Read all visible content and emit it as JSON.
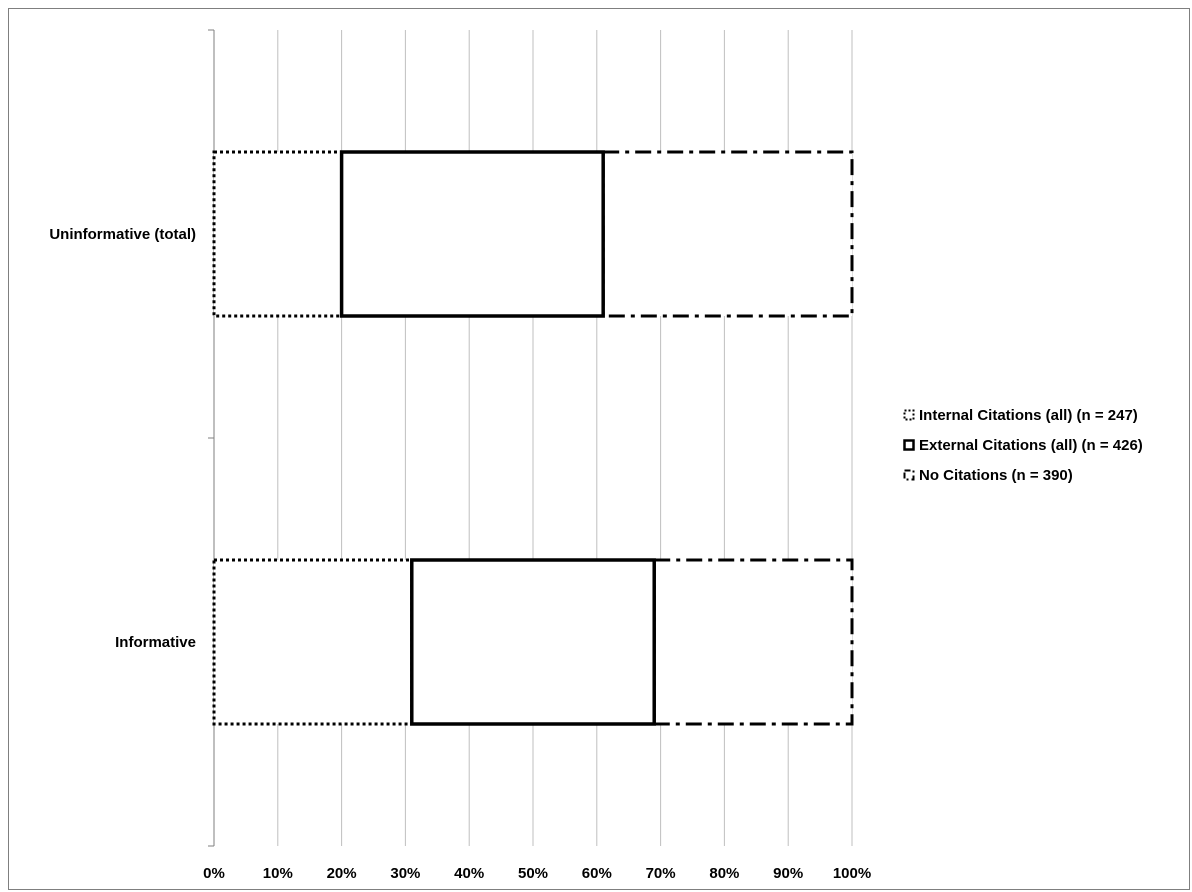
{
  "chart_data": {
    "type": "bar",
    "stacked": "percent",
    "orientation": "horizontal",
    "categories": [
      "Uninformative (total)",
      "Informative"
    ],
    "series": [
      {
        "name": "Internal Citations (all) (n = 247)",
        "values": [
          20,
          31
        ],
        "border": "dotted"
      },
      {
        "name": "External Citations (all) (n = 426)",
        "values": [
          41,
          38
        ],
        "border": "solid"
      },
      {
        "name": "No Citations (n = 390)",
        "values": [
          39,
          31
        ],
        "border": "dash-dot"
      }
    ],
    "xticks": [
      "0%",
      "10%",
      "20%",
      "30%",
      "40%",
      "50%",
      "60%",
      "70%",
      "80%",
      "90%",
      "100%"
    ],
    "xlim": [
      0,
      100
    ],
    "grid": "vertical",
    "legend": "right",
    "colors": {
      "fill": "#ffffff",
      "border": "#000000",
      "grid": "#bfbfbf"
    }
  }
}
